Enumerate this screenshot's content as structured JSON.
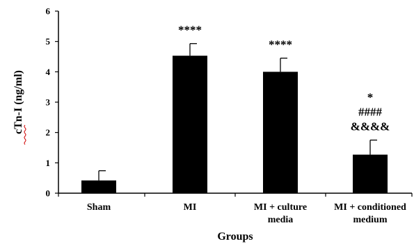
{
  "chart_data": {
    "type": "bar",
    "categories": [
      [
        "Sham"
      ],
      [
        "MI"
      ],
      [
        "MI + culture",
        "media"
      ],
      [
        "MI + conditioned",
        "medium"
      ]
    ],
    "values": [
      0.42,
      4.53,
      4.0,
      1.27
    ],
    "errors": [
      0.32,
      0.4,
      0.45,
      0.48
    ],
    "significance": [
      [],
      [
        "****"
      ],
      [
        "****"
      ],
      [
        "*",
        "####",
        "&&&&"
      ]
    ],
    "xlabel": "Groups",
    "ylabel": "cTn-I (ng/ml)",
    "ylim": [
      0,
      6
    ],
    "yticks": [
      0,
      1,
      2,
      3,
      4,
      5,
      6
    ],
    "grid": false,
    "bar_color": "#000000",
    "ylabel_underline_color": "#d00000"
  }
}
